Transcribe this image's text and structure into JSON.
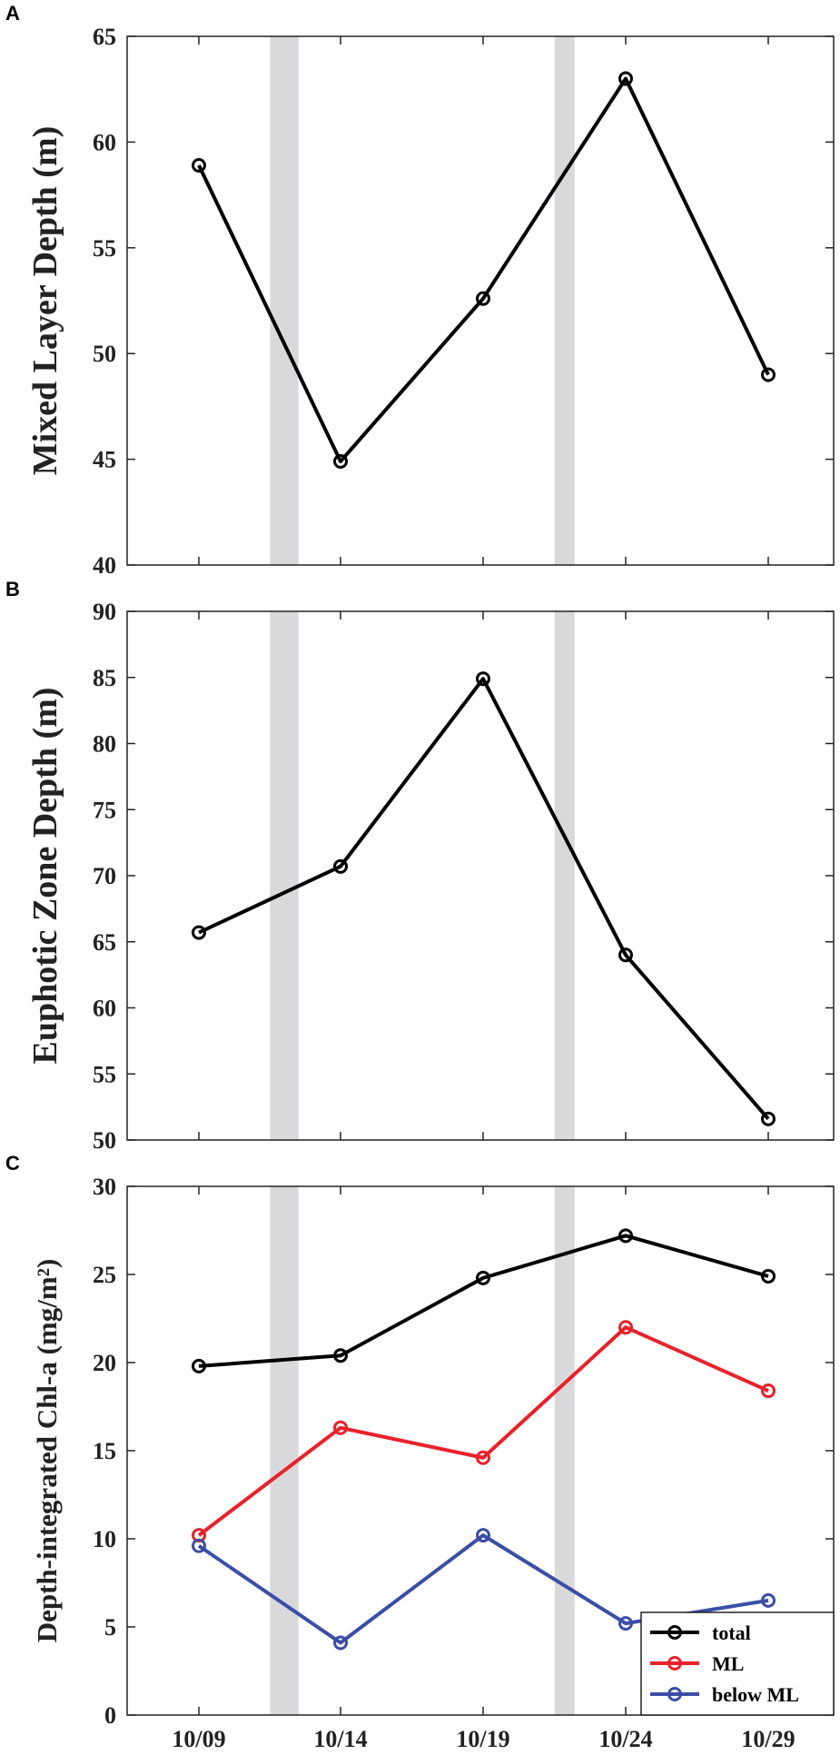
{
  "chart_data": [
    {
      "type": "line",
      "panel_label": "A",
      "ylabel": "Mixed Layer Depth (m)",
      "ylim": [
        40,
        65
      ],
      "yticks": [
        40,
        45,
        50,
        55,
        60,
        65
      ],
      "x": [
        "10/09",
        "10/14",
        "10/19",
        "10/24",
        "10/29"
      ],
      "show_x_tick_labels": false,
      "shaded_bands": [
        [
          "10/11.5",
          "10/12.5"
        ],
        [
          "10/21.5",
          "10/22.2"
        ]
      ],
      "series": [
        {
          "name": "",
          "color": "#000000",
          "values": [
            58.9,
            44.9,
            52.6,
            63.0,
            49.0
          ]
        }
      ],
      "legend": null
    },
    {
      "type": "line",
      "panel_label": "B",
      "ylabel": "Euphotic Zone Depth (m)",
      "ylim": [
        50,
        90
      ],
      "yticks": [
        50,
        55,
        60,
        65,
        70,
        75,
        80,
        85,
        90
      ],
      "x": [
        "10/09",
        "10/14",
        "10/19",
        "10/24",
        "10/29"
      ],
      "show_x_tick_labels": false,
      "shaded_bands": [
        [
          "10/11.5",
          "10/12.5"
        ],
        [
          "10/21.5",
          "10/22.2"
        ]
      ],
      "series": [
        {
          "name": "",
          "color": "#000000",
          "values": [
            65.7,
            70.7,
            84.9,
            64.0,
            51.6
          ]
        }
      ],
      "legend": null
    },
    {
      "type": "line",
      "panel_label": "C",
      "ylabel": "Depth-integrated Chl-a (mg/m²)",
      "ylim": [
        0,
        30
      ],
      "yticks": [
        0,
        5,
        10,
        15,
        20,
        25,
        30
      ],
      "x": [
        "10/09",
        "10/14",
        "10/19",
        "10/24",
        "10/29"
      ],
      "show_x_tick_labels": true,
      "shaded_bands": [
        [
          "10/11.5",
          "10/12.5"
        ],
        [
          "10/21.5",
          "10/22.2"
        ]
      ],
      "series": [
        {
          "name": "total",
          "color": "#000000",
          "values": [
            19.8,
            20.4,
            24.8,
            27.2,
            24.9
          ]
        },
        {
          "name": "ML",
          "color": "#e8212a",
          "values": [
            10.2,
            16.3,
            14.6,
            22.0,
            18.4
          ]
        },
        {
          "name": "below ML",
          "color": "#3b4ea6",
          "values": [
            9.6,
            4.1,
            10.2,
            5.2,
            6.5
          ]
        }
      ],
      "legend": "bottom-right"
    }
  ]
}
